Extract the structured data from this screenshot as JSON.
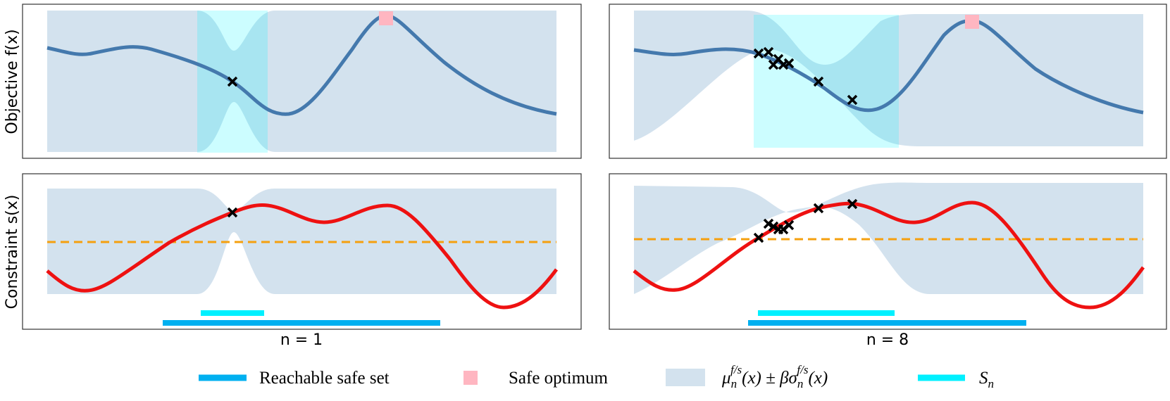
{
  "panels": {
    "ylabels": [
      "Objective f(x)",
      "Constraint s(x)"
    ],
    "columns": [
      "n = 1",
      "n = 8"
    ]
  },
  "legend": [
    {
      "label": "Reachable safe set"
    },
    {
      "label": "Safe optimum"
    },
    {
      "parts": [
        "μ",
        "n",
        "f/s",
        "(x) ± β",
        "σ",
        "n",
        "f/s",
        "(x)"
      ]
    },
    {
      "parts": [
        "S",
        "n"
      ]
    }
  ]
}
